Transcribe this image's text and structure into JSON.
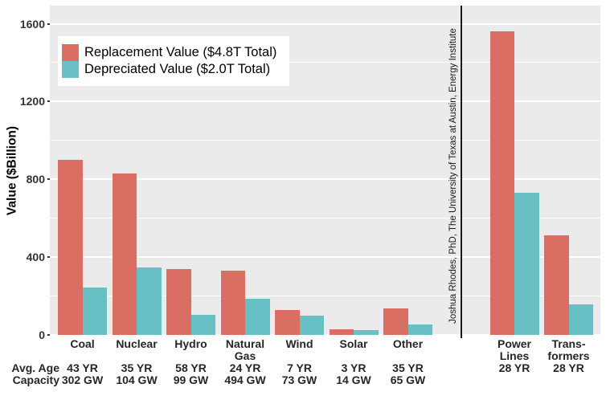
{
  "chart_data": {
    "type": "bar",
    "title": "",
    "ylabel": "Value ($Billion)",
    "ylim": [
      0,
      1693
    ],
    "yticks": [
      0,
      400,
      800,
      1200,
      1600
    ],
    "minor_gridlines": [
      200,
      600,
      1000,
      1400
    ],
    "grid": true,
    "legend_position": "top-left-inside",
    "series": [
      {
        "name": "Replacement Value ($4.8T Total)",
        "color": "#DB6E62",
        "values": [
          900,
          830,
          340,
          330,
          130,
          30,
          135,
          1560,
          510
        ]
      },
      {
        "name": "Depreciated Value ($2.0T Total)",
        "color": "#68BFC4",
        "values": [
          245,
          345,
          105,
          185,
          100,
          25,
          55,
          730,
          155
        ]
      }
    ],
    "categories": [
      {
        "label_lines": [
          "Coal"
        ],
        "avg_age": "43 YR",
        "capacity": "302 GW"
      },
      {
        "label_lines": [
          "Nuclear"
        ],
        "avg_age": "35 YR",
        "capacity": "104 GW"
      },
      {
        "label_lines": [
          "Hydro"
        ],
        "avg_age": "58 YR",
        "capacity": "99 GW"
      },
      {
        "label_lines": [
          "Natural",
          "Gas"
        ],
        "avg_age": "24 YR",
        "capacity": "494 GW"
      },
      {
        "label_lines": [
          "Wind"
        ],
        "avg_age": "7 YR",
        "capacity": "73 GW"
      },
      {
        "label_lines": [
          "Solar"
        ],
        "avg_age": "3 YR",
        "capacity": "14 GW"
      },
      {
        "label_lines": [
          "Other"
        ],
        "avg_age": "35 YR",
        "capacity": "65 GW"
      },
      {
        "label_lines": [
          "Power",
          "Lines"
        ],
        "avg_age": "28 YR",
        "capacity": ""
      },
      {
        "label_lines": [
          "Trans-",
          "formers"
        ],
        "avg_age": "28 YR",
        "capacity": ""
      }
    ],
    "row_headers": {
      "avg_age": "Avg. Age",
      "capacity": "Capacity"
    },
    "divider_after_index": 6,
    "annotation": "Joshua Rhodes, PhD, The University of Texas at Austin, Energy Institute",
    "colors": {
      "panel_bg": "#EBEBEB",
      "grid": "#FFFFFF",
      "replacement": "#DB6E62",
      "depreciated": "#68BFC4",
      "divider": "#1A1A1A",
      "label_text": "#262626",
      "tick_text": "#333333"
    }
  }
}
